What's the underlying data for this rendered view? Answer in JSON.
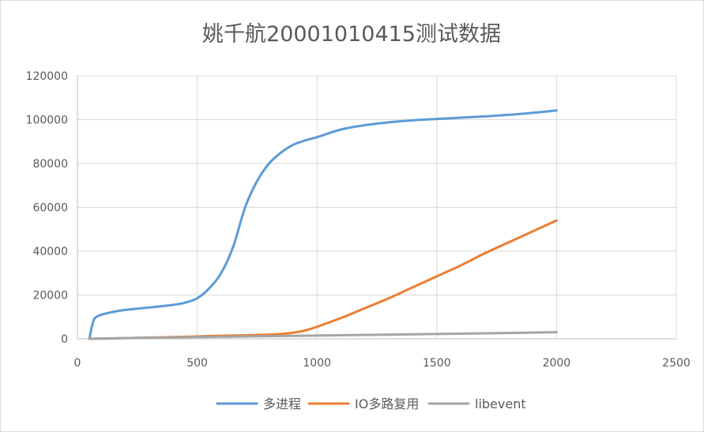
{
  "chart_data": {
    "type": "line",
    "title": "姚千航20001010415测试数据",
    "xlabel": "",
    "ylabel": "",
    "xlim": [
      0,
      2500
    ],
    "ylim": [
      0,
      120000
    ],
    "x_ticks": [
      0,
      500,
      1000,
      1500,
      2000,
      2500
    ],
    "y_ticks": [
      0,
      20000,
      40000,
      60000,
      80000,
      100000,
      120000
    ],
    "x_tick_labels": [
      "0",
      "500",
      "1000",
      "1500",
      "2000",
      "2500"
    ],
    "y_tick_labels": [
      "0",
      "20000",
      "40000",
      "60000",
      "80000",
      "100000",
      "120000"
    ],
    "grid": true,
    "legend_position": "bottom",
    "series": [
      {
        "name": "多进程",
        "color": "#5B9BD5",
        "x": [
          50,
          60,
          70,
          80,
          100,
          150,
          200,
          300,
          400,
          450,
          500,
          550,
          600,
          650,
          700,
          750,
          800,
          850,
          900,
          950,
          1000,
          1100,
          1200,
          1300,
          1400,
          1500,
          1600,
          1700,
          1800,
          1900,
          2000
        ],
        "y": [
          0,
          5500,
          9000,
          10000,
          11000,
          12300,
          13200,
          14300,
          15500,
          16500,
          18500,
          23000,
          30000,
          42000,
          60000,
          72000,
          80000,
          85000,
          88500,
          90500,
          92000,
          95500,
          97500,
          98800,
          99700,
          100300,
          100900,
          101500,
          102200,
          103100,
          104200
        ]
      },
      {
        "name": "IO多路复用",
        "color": "#ED7D31",
        "x": [
          50,
          200,
          400,
          500,
          600,
          700,
          800,
          850,
          900,
          950,
          1000,
          1100,
          1200,
          1300,
          1400,
          1500,
          1600,
          1700,
          1800,
          1900,
          2000
        ],
        "y": [
          0,
          300,
          800,
          1100,
          1400,
          1600,
          1900,
          2200,
          2800,
          3800,
          5500,
          9500,
          14000,
          18500,
          23500,
          28500,
          33500,
          39000,
          44000,
          49000,
          54000
        ]
      },
      {
        "name": "libevent",
        "color": "#A5A5A5",
        "x": [
          50,
          200,
          500,
          1000,
          1500,
          2000
        ],
        "y": [
          0,
          300,
          800,
          1500,
          2200,
          3000
        ]
      }
    ]
  }
}
